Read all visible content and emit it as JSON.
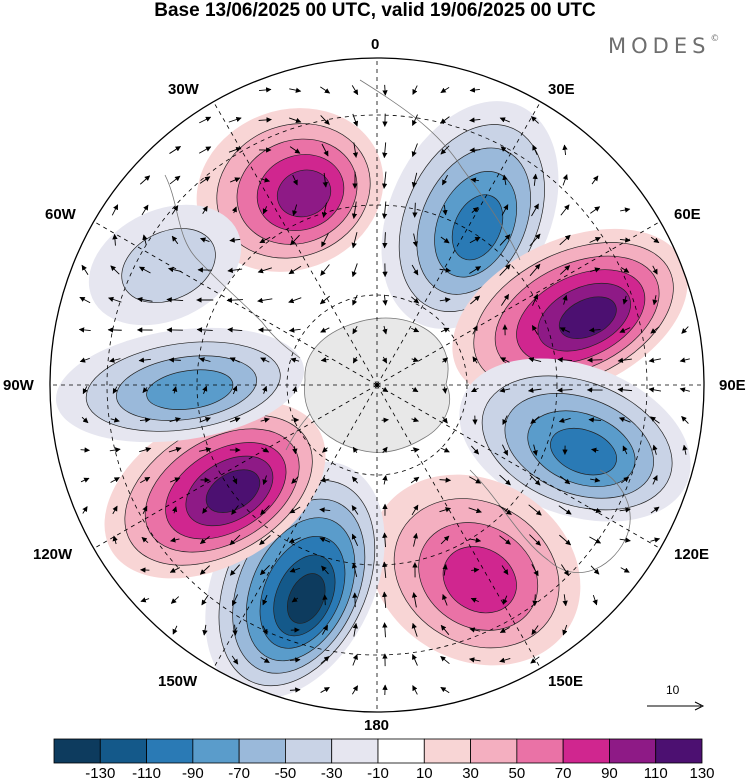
{
  "title": "Base 13/06/2025 00 UTC, valid 19/06/2025 00 UTC",
  "brand": "MODES",
  "brand_mark": "©",
  "longitude_labels": {
    "n0": "0",
    "e30": "30E",
    "e60": "60E",
    "e90": "90E",
    "e120": "120E",
    "e150": "150E",
    "s180": "180",
    "w150": "150W",
    "w120": "120W",
    "w90": "90W",
    "w60": "60W",
    "w30": "30W"
  },
  "reference_vector": {
    "label": "10"
  },
  "colorbar": {
    "ticks": [
      "-130",
      "-110",
      "-90",
      "-70",
      "-50",
      "-30",
      "-10",
      "10",
      "30",
      "50",
      "70",
      "90",
      "110",
      "130"
    ],
    "colors": [
      "#0d3b5e",
      "#14598a",
      "#2a7ab5",
      "#5a9ccb",
      "#9ab9da",
      "#c9d3e6",
      "#e6e6f0",
      "#ffffff",
      "#f8d5d5",
      "#f4afc0",
      "#ea72a6",
      "#d0268f",
      "#8e1a86",
      "#4c1071"
    ]
  },
  "map_colors": {
    "land": "#e8e8e8",
    "background": "#ffffff"
  }
}
